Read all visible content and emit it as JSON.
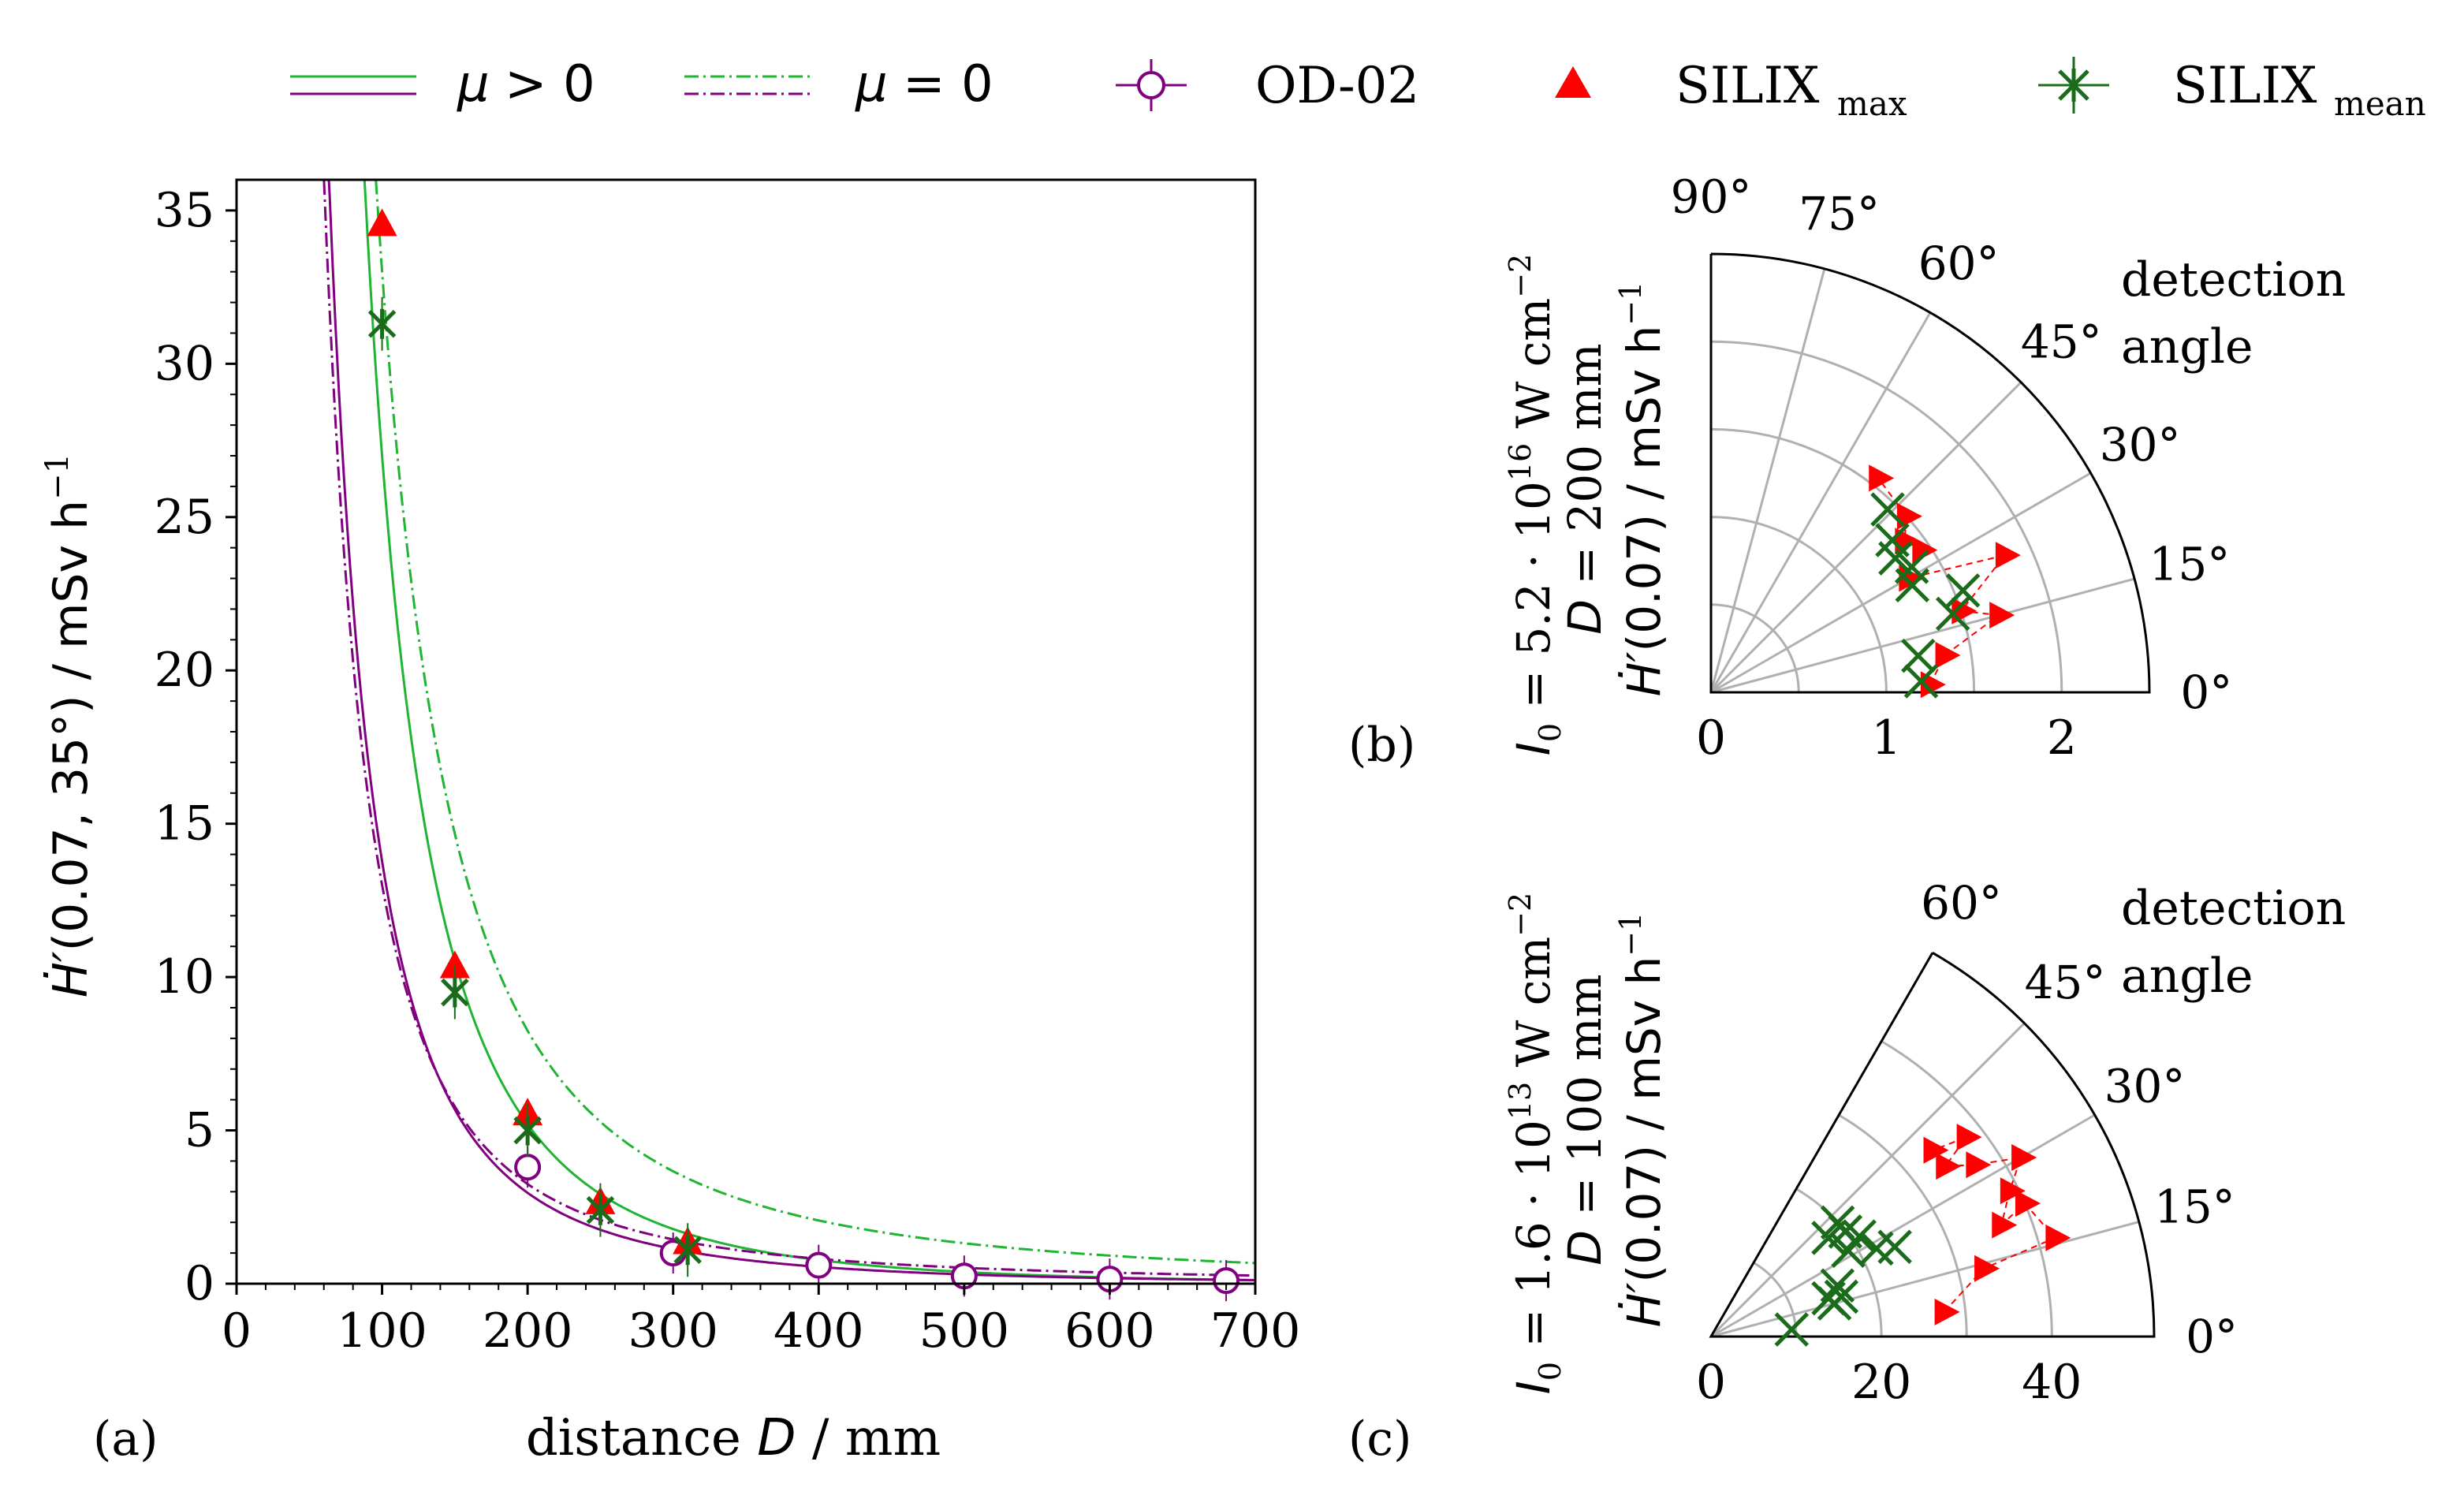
{
  "colors": {
    "green": "#1fb532",
    "purple": "#800080",
    "red": "#ff0000",
    "darkgreen": "#1a6b1a",
    "grid": "#b0b0b0"
  },
  "legend": {
    "items": [
      {
        "key": "mu_pos",
        "symbol": "μ",
        "rel": "> 0"
      },
      {
        "key": "mu_zero",
        "symbol": "μ",
        "rel": "= 0"
      },
      {
        "key": "od02",
        "label": "OD-02"
      },
      {
        "key": "silix_max",
        "label": "SILIX",
        "sub": "max"
      },
      {
        "key": "silix_mean",
        "label": "SILIX",
        "sub": "mean"
      }
    ]
  },
  "chart_data": [
    {
      "id": "a",
      "panel_label": "(a)",
      "type": "line+scatter",
      "xlabel_pre": "distance ",
      "xlabel_var": "D",
      "xlabel_post": " / mm",
      "ylabel_var": "Ḣ′",
      "ylabel_args": "(0.07, 35°) / mSv h",
      "ylabel_exp": "−1",
      "xlim": [
        0,
        700
      ],
      "ylim": [
        0,
        36
      ],
      "xticks": [
        0,
        100,
        200,
        300,
        400,
        500,
        600,
        700
      ],
      "yticks": [
        0,
        5,
        10,
        15,
        20,
        25,
        30,
        35
      ],
      "curves": [
        {
          "name": "green μ > 0",
          "color": "green",
          "dash": "",
          "A": 350000,
          "p": 2,
          "mu": 0.0026
        },
        {
          "name": "purple μ > 0",
          "color": "purple",
          "dash": "",
          "A": 160000,
          "p": 2,
          "mu": 0.0015
        },
        {
          "name": "green μ = 0",
          "color": "green",
          "dash": "dashdot",
          "A": 330000,
          "p": 2,
          "mu": 0
        },
        {
          "name": "purple μ = 0",
          "color": "purple",
          "dash": "dashdot",
          "A": 130000,
          "p": 2,
          "mu": 0
        }
      ],
      "od02": [
        [
          200,
          3.8
        ],
        [
          300,
          1.0
        ],
        [
          400,
          0.6
        ],
        [
          500,
          0.25
        ],
        [
          600,
          0.15
        ],
        [
          680,
          0.1
        ]
      ],
      "silix_max": [
        [
          100,
          34.5
        ],
        [
          150,
          10.3
        ],
        [
          200,
          5.5
        ],
        [
          250,
          2.6
        ],
        [
          310,
          1.3
        ]
      ],
      "silix_mean": [
        [
          100,
          31.3
        ],
        [
          150,
          9.5
        ],
        [
          200,
          5.0
        ],
        [
          250,
          2.4
        ],
        [
          310,
          1.1
        ]
      ]
    },
    {
      "id": "b",
      "panel_label": "(b)",
      "type": "polar",
      "ylabel_line1_var": "I",
      "ylabel_line1_sub": "0",
      "ylabel_line1_text": " = 5.2 · 10",
      "ylabel_line1_exp": "16",
      "ylabel_line1_unit": " W cm",
      "ylabel_line1_uexp": "−2",
      "ylabel_line2_var": "D",
      "ylabel_line2_text": " = 200 mm",
      "ylabel_line3_var": "Ḣ′",
      "ylabel_line3_text": "(0.07) / mSv h",
      "ylabel_line3_exp": "−1",
      "rmax": 2.5,
      "rgrid": [
        0.5,
        1,
        1.5,
        2
      ],
      "rticks": [
        0,
        1,
        2
      ],
      "angle_labels": [
        "0°",
        "15°",
        "30°",
        "45°",
        "60°",
        "75°",
        "90°"
      ],
      "detection_label_1": "detection",
      "detection_label_2": "angle",
      "silix_max": [
        [
          1.25,
          2
        ],
        [
          1.35,
          9
        ],
        [
          1.7,
          15
        ],
        [
          1.5,
          18
        ],
        [
          1.85,
          25
        ],
        [
          1.3,
          30
        ],
        [
          1.45,
          34
        ],
        [
          1.4,
          38
        ],
        [
          1.5,
          42
        ],
        [
          1.55,
          52
        ]
      ],
      "silix_mean": [
        [
          1.2,
          3
        ],
        [
          1.2,
          10
        ],
        [
          1.45,
          18
        ],
        [
          1.55,
          22
        ],
        [
          1.3,
          28
        ],
        [
          1.35,
          32
        ],
        [
          1.3,
          36
        ],
        [
          1.35,
          40
        ],
        [
          1.45,
          46
        ]
      ]
    },
    {
      "id": "c",
      "panel_label": "(c)",
      "type": "polar",
      "ylabel_line1_var": "I",
      "ylabel_line1_sub": "0",
      "ylabel_line1_text": " = 1.6 · 10",
      "ylabel_line1_exp": "13",
      "ylabel_line1_unit": " W cm",
      "ylabel_line1_uexp": "−2",
      "ylabel_line2_var": "D",
      "ylabel_line2_text": " = 100 mm",
      "ylabel_line3_var": "Ḣ′",
      "ylabel_line3_text": "(0.07) / mSv h",
      "ylabel_line3_exp": "−1",
      "rmax": 52,
      "rgrid": [
        10,
        20,
        30,
        40
      ],
      "rticks": [
        0,
        20,
        40
      ],
      "angle_labels": [
        "0°",
        "15°",
        "30°",
        "45°",
        "60°"
      ],
      "detection_label_1": "detection",
      "detection_label_2": "angle",
      "silix_max": [
        [
          27.5,
          6
        ],
        [
          33,
          14
        ],
        [
          42,
          16
        ],
        [
          40,
          23
        ],
        [
          36.5,
          21
        ],
        [
          39,
          26
        ],
        [
          42,
          30
        ],
        [
          37,
          33
        ],
        [
          34,
          36
        ],
        [
          38,
          38
        ],
        [
          34,
          40
        ]
      ],
      "silix_mean": [
        [
          9.5,
          5
        ],
        [
          15,
          15
        ],
        [
          16,
          17
        ],
        [
          14.5,
          18
        ],
        [
          16,
          22
        ],
        [
          22,
          28
        ],
        [
          24,
          26
        ],
        [
          19,
          32
        ],
        [
          21,
          34
        ],
        [
          20,
          38
        ],
        [
          18,
          40
        ],
        [
          20,
          42
        ]
      ]
    }
  ]
}
